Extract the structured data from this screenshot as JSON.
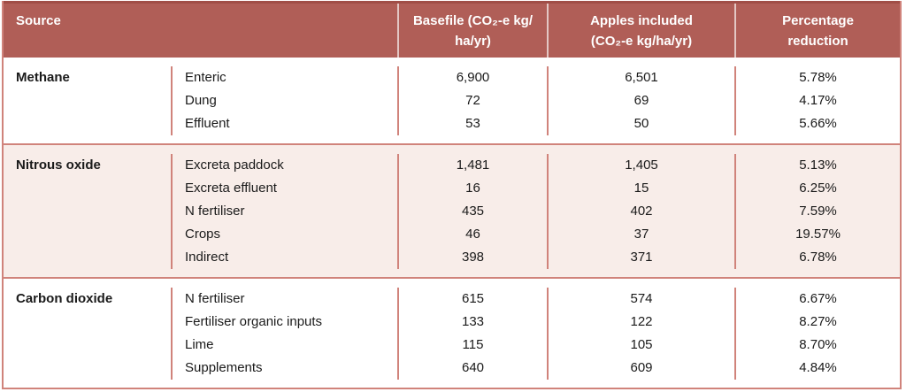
{
  "table": {
    "header": {
      "source": "Source",
      "basefile_line1": "Basefile (CO₂-e kg/",
      "basefile_line2": "ha/yr)",
      "apples_line1": "Apples included",
      "apples_line2": "(CO₂-e kg/ha/yr)",
      "reduction_line1": "Percentage",
      "reduction_line2": "reduction"
    },
    "sections": [
      {
        "category": "Methane",
        "rows": [
          {
            "source": "Enteric",
            "basefile": "6,900",
            "apples": "6,501",
            "reduction": "5.78%"
          },
          {
            "source": "Dung",
            "basefile": "72",
            "apples": "69",
            "reduction": "4.17%"
          },
          {
            "source": "Effluent",
            "basefile": "53",
            "apples": "50",
            "reduction": "5.66%"
          }
        ]
      },
      {
        "category": "Nitrous oxide",
        "rows": [
          {
            "source": "Excreta paddock",
            "basefile": "1,481",
            "apples": "1,405",
            "reduction": "5.13%"
          },
          {
            "source": "Excreta effluent",
            "basefile": "16",
            "apples": "15",
            "reduction": "6.25%"
          },
          {
            "source": "N fertiliser",
            "basefile": "435",
            "apples": "402",
            "reduction": "7.59%"
          },
          {
            "source": "Crops",
            "basefile": "46",
            "apples": "37",
            "reduction": "19.57%"
          },
          {
            "source": "Indirect",
            "basefile": "398",
            "apples": "371",
            "reduction": "6.78%"
          }
        ]
      },
      {
        "category": "Carbon dioxide",
        "rows": [
          {
            "source": "N fertiliser",
            "basefile": "615",
            "apples": "574",
            "reduction": "6.67%"
          },
          {
            "source": "Fertiliser organic inputs",
            "basefile": "133",
            "apples": "122",
            "reduction": "8.27%"
          },
          {
            "source": "Lime",
            "basefile": "115",
            "apples": "105",
            "reduction": "8.70%"
          },
          {
            "source": "Supplements",
            "basefile": "640",
            "apples": "609",
            "reduction": "4.84%"
          }
        ]
      }
    ]
  },
  "colors": {
    "header_bg": "#b05e57",
    "header_top_edge": "#a04e47",
    "header_text": "#ffffff",
    "border": "#d0837b",
    "alt_section_bg": "#f8ede9",
    "body_text": "#1a1a1a"
  }
}
